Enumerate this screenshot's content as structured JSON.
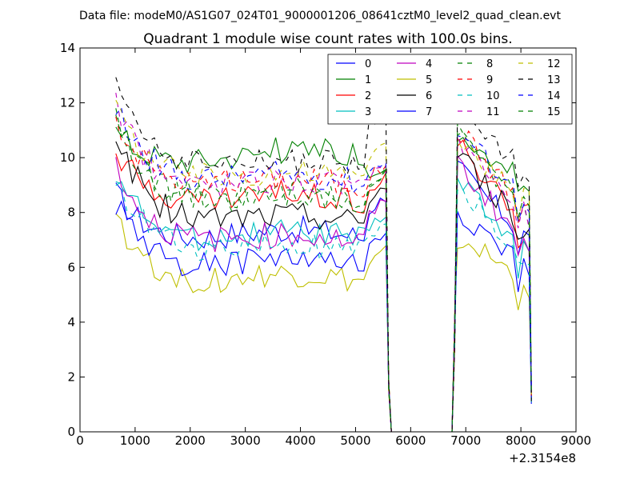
{
  "chart_data": {
    "type": "line",
    "suptitle": "Data file: modeM0/AS1G07_024T01_9000001206_08641cztM0_level2_quad_clean.evt",
    "title": "Quadrant 1 module wise count rates with 100.0s bins.",
    "xlabel": "",
    "ylabel": "",
    "x_offset_label": "+2.3154e8",
    "xlim": [
      0,
      9000
    ],
    "ylim": [
      0,
      14
    ],
    "xticks": [
      0,
      1000,
      2000,
      3000,
      4000,
      5000,
      6000,
      7000,
      8000,
      9000
    ],
    "yticks": [
      0,
      2,
      4,
      6,
      8,
      10,
      12,
      14
    ],
    "grid": false,
    "legend": {
      "position": "top-right",
      "columns": 4
    },
    "profile": {
      "x_start": 650,
      "x_step": 100,
      "gap_start": 5650,
      "gap_end": 6750,
      "x_end": 8150,
      "drop_x": 5550,
      "rise_x": 6850
    },
    "series": [
      {
        "name": "0",
        "color": "#0000ff",
        "dash": "solid",
        "level": 7.0,
        "decline": 2.0,
        "pre_gap": 8.6,
        "post_peak": 9.6,
        "end": 7.0
      },
      {
        "name": "1",
        "color": "#008000",
        "dash": "solid",
        "level": 9.9,
        "decline": 1.4,
        "pre_gap": 9.6,
        "post_peak": 11.0,
        "end": 8.9
      },
      {
        "name": "2",
        "color": "#ff0000",
        "dash": "solid",
        "level": 8.3,
        "decline": 2.3,
        "pre_gap": 9.3,
        "post_peak": 10.6,
        "end": 7.0
      },
      {
        "name": "3",
        "color": "#00bfbf",
        "dash": "solid",
        "level": 6.9,
        "decline": 2.8,
        "pre_gap": 8.0,
        "post_peak": 9.2,
        "end": 6.4
      },
      {
        "name": "4",
        "color": "#bf00bf",
        "dash": "solid",
        "level": 6.8,
        "decline": 3.2,
        "pre_gap": 8.4,
        "post_peak": 9.8,
        "end": 6.7
      },
      {
        "name": "5",
        "color": "#bfbf00",
        "dash": "solid",
        "level": 5.3,
        "decline": 2.9,
        "pre_gap": 6.6,
        "post_peak": 7.1,
        "end": 5.3
      },
      {
        "name": "6",
        "color": "#000000",
        "dash": "solid",
        "level": 7.5,
        "decline": 3.6,
        "pre_gap": 9.0,
        "post_peak": 10.2,
        "end": 7.2
      },
      {
        "name": "7",
        "color": "#0000ff",
        "dash": "solid",
        "level": 5.9,
        "decline": 2.8,
        "pre_gap": 7.2,
        "post_peak": 8.0,
        "end": 5.8
      },
      {
        "name": "8",
        "color": "#008000",
        "dash": "dashed",
        "level": 8.4,
        "decline": 3.2,
        "pre_gap": 9.5,
        "post_peak": 11.0,
        "end": 7.9
      },
      {
        "name": "9",
        "color": "#ff0000",
        "dash": "dashed",
        "level": 8.9,
        "decline": 2.9,
        "pre_gap": 9.8,
        "post_peak": 11.1,
        "end": 8.1
      },
      {
        "name": "10",
        "color": "#00bfbf",
        "dash": "dashed",
        "level": 6.4,
        "decline": 3.3,
        "pre_gap": 7.5,
        "post_peak": 9.0,
        "end": 6.2
      },
      {
        "name": "11",
        "color": "#bf00bf",
        "dash": "dashed",
        "level": 8.8,
        "decline": 3.4,
        "pre_gap": 9.7,
        "post_peak": 10.8,
        "end": 7.8
      },
      {
        "name": "12",
        "color": "#bfbf00",
        "dash": "dashed",
        "level": 9.1,
        "decline": 3.1,
        "pre_gap": 10.6,
        "post_peak": 10.4,
        "end": 8.6
      },
      {
        "name": "13",
        "color": "#000000",
        "dash": "dashed",
        "level": 9.5,
        "decline": 3.8,
        "pre_gap": 11.8,
        "post_peak": 12.3,
        "end": 9.2
      },
      {
        "name": "14",
        "color": "#0000ff",
        "dash": "dashed",
        "level": 9.0,
        "decline": 3.2,
        "pre_gap": 10.0,
        "post_peak": 11.0,
        "end": 8.4
      },
      {
        "name": "15",
        "color": "#008000",
        "dash": "dashed",
        "level": 8.2,
        "decline": 3.5,
        "pre_gap": 9.6,
        "post_peak": 10.8,
        "end": 8.0
      }
    ]
  }
}
